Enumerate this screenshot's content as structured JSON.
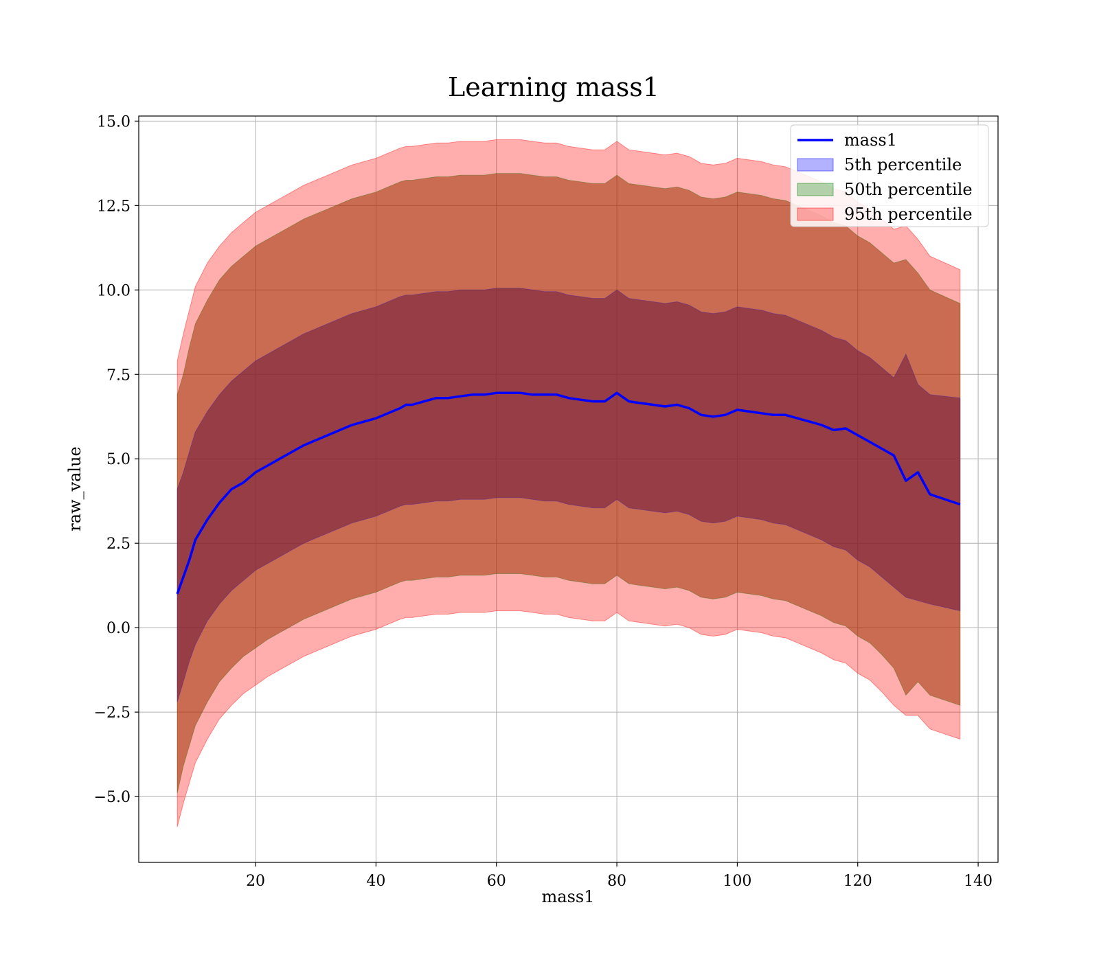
{
  "chart_data": {
    "type": "area",
    "title": "Learning mass1",
    "xlabel": "mass1",
    "ylabel": "raw_value",
    "xlim": [
      0.6,
      143.3
    ],
    "ylim": [
      -6.95,
      15.15
    ],
    "xticks": [
      20,
      40,
      60,
      80,
      100,
      120,
      140
    ],
    "xtick_labels": [
      "20",
      "40",
      "60",
      "80",
      "100",
      "120",
      "140"
    ],
    "yticks": [
      -5.0,
      -2.5,
      0.0,
      2.5,
      5.0,
      7.5,
      10.0,
      12.5,
      15.0
    ],
    "ytick_labels": [
      "−5.0",
      "−2.5",
      "0.0",
      "2.5",
      "5.0",
      "7.5",
      "10.0",
      "12.5",
      "15.0"
    ],
    "grid": true,
    "legend_position": "top-right",
    "colors": {
      "line": "#0000ff",
      "p5": "#0000ff",
      "p50": "#008000",
      "p95": "#ff0000"
    },
    "x": [
      7,
      8,
      9,
      10,
      12,
      14,
      16,
      18,
      20,
      22,
      24,
      26,
      28,
      30,
      32,
      34,
      36,
      38,
      40,
      42,
      44,
      45,
      46,
      48,
      50,
      52,
      54,
      56,
      58,
      60,
      62,
      64,
      66,
      68,
      70,
      72,
      74,
      76,
      78,
      80,
      82,
      84,
      86,
      88,
      90,
      92,
      94,
      96,
      98,
      100,
      102,
      104,
      106,
      108,
      110,
      112,
      114,
      116,
      118,
      120,
      122,
      124,
      126,
      128,
      130,
      132,
      137
    ],
    "series": [
      {
        "name": "mass1",
        "values": [
          1.0,
          1.5,
          2.0,
          2.6,
          3.2,
          3.7,
          4.1,
          4.3,
          4.6,
          4.8,
          5.0,
          5.2,
          5.4,
          5.55,
          5.7,
          5.85,
          6.0,
          6.1,
          6.2,
          6.35,
          6.5,
          6.6,
          6.6,
          6.7,
          6.8,
          6.8,
          6.85,
          6.9,
          6.9,
          6.95,
          6.95,
          6.95,
          6.9,
          6.9,
          6.9,
          6.8,
          6.75,
          6.7,
          6.7,
          6.95,
          6.7,
          6.65,
          6.6,
          6.55,
          6.6,
          6.5,
          6.3,
          6.25,
          6.3,
          6.45,
          6.4,
          6.35,
          6.3,
          6.3,
          6.2,
          6.1,
          6.0,
          5.85,
          5.9,
          5.7,
          5.5,
          5.3,
          5.1,
          4.35,
          4.6,
          3.95,
          3.65
        ]
      },
      {
        "name": "5th percentile",
        "lower": [
          -2.2,
          -1.6,
          -1.0,
          -0.5,
          0.2,
          0.7,
          1.1,
          1.4,
          1.7,
          1.9,
          2.1,
          2.3,
          2.5,
          2.65,
          2.8,
          2.95,
          3.1,
          3.2,
          3.3,
          3.45,
          3.6,
          3.65,
          3.65,
          3.7,
          3.75,
          3.75,
          3.8,
          3.8,
          3.8,
          3.85,
          3.85,
          3.85,
          3.8,
          3.75,
          3.75,
          3.65,
          3.6,
          3.55,
          3.55,
          3.8,
          3.55,
          3.5,
          3.45,
          3.4,
          3.45,
          3.35,
          3.15,
          3.1,
          3.15,
          3.3,
          3.25,
          3.2,
          3.1,
          3.05,
          2.9,
          2.75,
          2.6,
          2.4,
          2.3,
          2.0,
          1.8,
          1.5,
          1.2,
          0.9,
          0.8,
          0.7,
          0.5
        ],
        "upper": [
          4.1,
          4.6,
          5.2,
          5.8,
          6.4,
          6.9,
          7.3,
          7.6,
          7.9,
          8.1,
          8.3,
          8.5,
          8.7,
          8.85,
          9.0,
          9.15,
          9.3,
          9.4,
          9.5,
          9.65,
          9.8,
          9.85,
          9.85,
          9.9,
          9.95,
          9.95,
          10.0,
          10.0,
          10.0,
          10.05,
          10.05,
          10.05,
          10.0,
          9.95,
          9.95,
          9.85,
          9.8,
          9.75,
          9.75,
          10.0,
          9.75,
          9.7,
          9.65,
          9.6,
          9.65,
          9.55,
          9.35,
          9.3,
          9.35,
          9.5,
          9.45,
          9.4,
          9.3,
          9.25,
          9.1,
          8.95,
          8.8,
          8.6,
          8.5,
          8.2,
          8.0,
          7.7,
          7.4,
          8.1,
          7.2,
          6.9,
          6.8
        ]
      },
      {
        "name": "50th percentile",
        "lower": [
          -4.9,
          -4.1,
          -3.5,
          -2.9,
          -2.2,
          -1.6,
          -1.2,
          -0.85,
          -0.6,
          -0.35,
          -0.15,
          0.05,
          0.25,
          0.4,
          0.55,
          0.7,
          0.85,
          0.95,
          1.05,
          1.2,
          1.35,
          1.4,
          1.4,
          1.45,
          1.5,
          1.5,
          1.55,
          1.55,
          1.55,
          1.6,
          1.6,
          1.6,
          1.55,
          1.5,
          1.5,
          1.4,
          1.35,
          1.3,
          1.3,
          1.55,
          1.3,
          1.25,
          1.2,
          1.15,
          1.2,
          1.1,
          0.9,
          0.85,
          0.9,
          1.05,
          1.0,
          0.95,
          0.85,
          0.8,
          0.65,
          0.5,
          0.35,
          0.15,
          0.05,
          -0.25,
          -0.45,
          -0.8,
          -1.2,
          -2.0,
          -1.6,
          -2.0,
          -2.3
        ],
        "upper": [
          6.9,
          7.5,
          8.3,
          9.0,
          9.7,
          10.3,
          10.7,
          11.0,
          11.3,
          11.5,
          11.7,
          11.9,
          12.1,
          12.25,
          12.4,
          12.55,
          12.7,
          12.8,
          12.9,
          13.05,
          13.2,
          13.25,
          13.25,
          13.3,
          13.35,
          13.35,
          13.4,
          13.4,
          13.4,
          13.45,
          13.45,
          13.45,
          13.4,
          13.35,
          13.35,
          13.25,
          13.2,
          13.15,
          13.15,
          13.4,
          13.15,
          13.1,
          13.05,
          13.0,
          13.05,
          12.95,
          12.75,
          12.7,
          12.75,
          12.9,
          12.85,
          12.8,
          12.7,
          12.65,
          12.5,
          12.35,
          12.2,
          12.0,
          11.9,
          11.6,
          11.4,
          11.1,
          10.8,
          10.9,
          10.5,
          10.0,
          9.6
        ]
      },
      {
        "name": "95th percentile",
        "lower": [
          -5.9,
          -5.2,
          -4.6,
          -4.0,
          -3.3,
          -2.7,
          -2.3,
          -1.95,
          -1.7,
          -1.45,
          -1.25,
          -1.05,
          -0.85,
          -0.7,
          -0.55,
          -0.4,
          -0.25,
          -0.15,
          -0.05,
          0.1,
          0.25,
          0.3,
          0.3,
          0.35,
          0.4,
          0.4,
          0.45,
          0.45,
          0.45,
          0.5,
          0.5,
          0.5,
          0.45,
          0.4,
          0.4,
          0.3,
          0.25,
          0.2,
          0.2,
          0.45,
          0.2,
          0.15,
          0.1,
          0.05,
          0.1,
          0.0,
          -0.2,
          -0.25,
          -0.2,
          -0.05,
          -0.1,
          -0.15,
          -0.25,
          -0.3,
          -0.45,
          -0.6,
          -0.75,
          -0.95,
          -1.05,
          -1.35,
          -1.55,
          -1.9,
          -2.3,
          -2.6,
          -2.6,
          -3.0,
          -3.3
        ]
      }
    ],
    "p95_upper": [
      7.9,
      8.7,
      9.4,
      10.1,
      10.8,
      11.3,
      11.7,
      12.0,
      12.3,
      12.5,
      12.7,
      12.9,
      13.1,
      13.25,
      13.4,
      13.55,
      13.7,
      13.8,
      13.9,
      14.05,
      14.2,
      14.25,
      14.25,
      14.3,
      14.35,
      14.35,
      14.4,
      14.4,
      14.4,
      14.45,
      14.45,
      14.45,
      14.4,
      14.35,
      14.35,
      14.25,
      14.2,
      14.15,
      14.15,
      14.4,
      14.15,
      14.1,
      14.05,
      14.0,
      14.05,
      13.95,
      13.75,
      13.7,
      13.75,
      13.9,
      13.85,
      13.8,
      13.7,
      13.65,
      13.5,
      13.35,
      13.2,
      13.0,
      12.9,
      12.6,
      12.4,
      12.1,
      11.8,
      11.9,
      11.5,
      11.0,
      10.6
    ],
    "legend": [
      "mass1",
      "5th percentile",
      "50th percentile",
      "95th percentile"
    ]
  }
}
